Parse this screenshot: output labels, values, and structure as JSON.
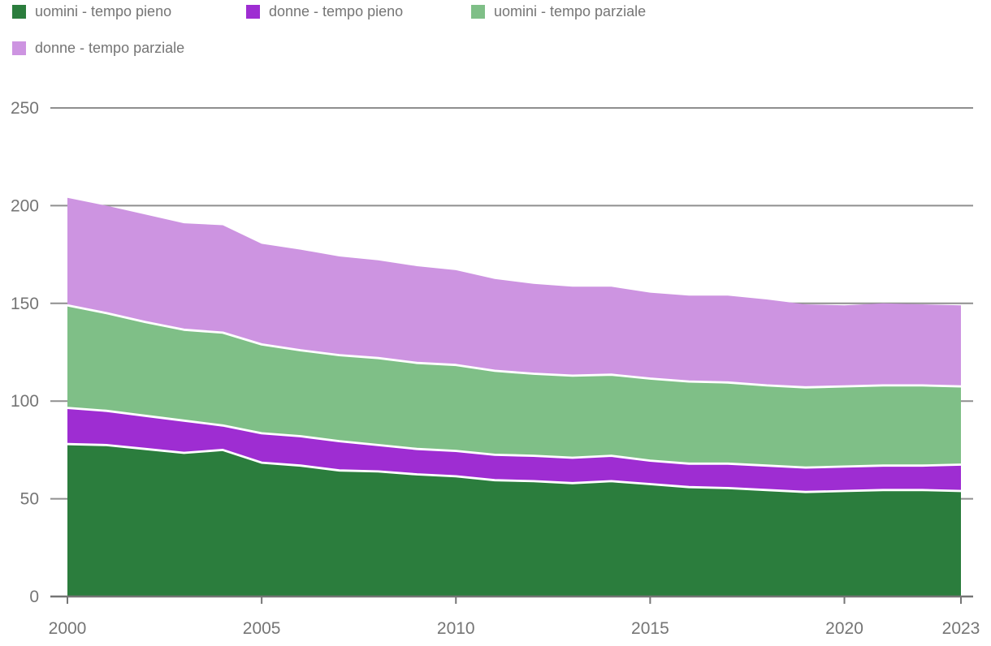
{
  "legend": {
    "items": [
      {
        "label": "uomini - tempo pieno",
        "color": "#2b7d3d"
      },
      {
        "label": "donne - tempo pieno",
        "color": "#9e2dd2"
      },
      {
        "label": "uomini - tempo parziale",
        "color": "#7fbf87"
      },
      {
        "label": "donne - tempo parziale",
        "color": "#cd94e1"
      }
    ]
  },
  "chart_data": {
    "type": "area",
    "stacked": true,
    "title": "",
    "x": [
      2000,
      2001,
      2002,
      2003,
      2004,
      2005,
      2006,
      2007,
      2008,
      2009,
      2010,
      2011,
      2012,
      2013,
      2014,
      2015,
      2016,
      2017,
      2018,
      2019,
      2020,
      2021,
      2022,
      2023
    ],
    "series": [
      {
        "name": "uomini - tempo pieno",
        "color": "#2b7d3d",
        "values": [
          78,
          77.5,
          75.5,
          73.5,
          75,
          68.5,
          67,
          64.5,
          64,
          62.5,
          61.5,
          59.5,
          59,
          58,
          59,
          57.5,
          56,
          55.5,
          54.5,
          53.5,
          54,
          54.5,
          54.5,
          54
        ]
      },
      {
        "name": "donne - tempo pieno",
        "color": "#9e2dd2",
        "values": [
          18.5,
          17.5,
          17,
          16.5,
          12.5,
          15,
          15,
          15,
          13.5,
          13,
          13,
          13,
          13,
          13,
          13,
          12,
          12,
          12.5,
          12.5,
          12.5,
          12.5,
          12.5,
          12.5,
          13.5
        ]
      },
      {
        "name": "uomini - tempo parziale",
        "color": "#7fbf87",
        "values": [
          52.5,
          50,
          48,
          46.5,
          47.5,
          45.5,
          44,
          44,
          44.5,
          44,
          44,
          43,
          42,
          42,
          41.5,
          42,
          42,
          41.5,
          41,
          41,
          41,
          41,
          41,
          40
        ]
      },
      {
        "name": "donne - tempo parziale",
        "color": "#cd94e1",
        "values": [
          55,
          55,
          55,
          54.5,
          55,
          51.5,
          51.5,
          50.5,
          50,
          49.5,
          48.5,
          47,
          46,
          45.5,
          45,
          44,
          44,
          44.5,
          44,
          42.5,
          41.5,
          42,
          41.5,
          41.5
        ]
      }
    ],
    "xticks": [
      2000,
      2005,
      2010,
      2015,
      2020,
      2023
    ],
    "yticks": [
      0,
      50,
      100,
      150,
      200,
      250
    ],
    "xlim": [
      2000,
      2023
    ],
    "ylim": [
      0,
      250
    ],
    "grid": true,
    "legend_position": "top-left",
    "colors": {
      "grid": "#8f8f8f",
      "axis": "#757575",
      "tick_label": "#757575",
      "series_boundary": "#ffffff",
      "background": "#ffffff"
    }
  }
}
